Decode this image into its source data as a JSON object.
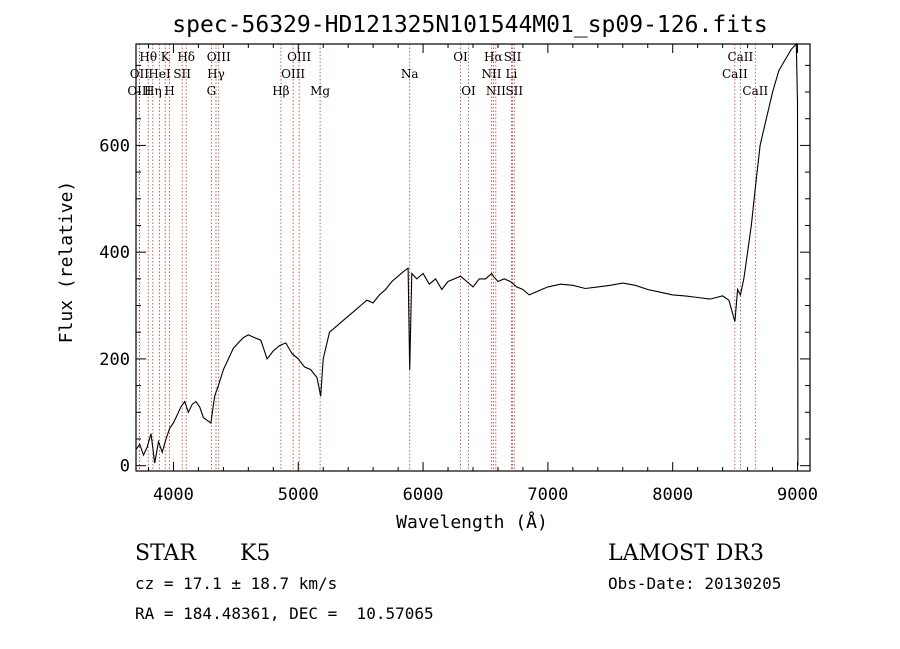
{
  "chart_data": {
    "type": "line",
    "title": "spec-56329-HD121325N101544M01_sp09-126.fits",
    "xlabel": "Wavelength (Å)",
    "ylabel": "Flux (relative)",
    "xlim": [
      3700,
      9100
    ],
    "ylim": [
      -10,
      790
    ],
    "xticks": [
      4000,
      5000,
      6000,
      7000,
      8000,
      9000
    ],
    "yticks": [
      0,
      200,
      400,
      600
    ],
    "xtick_labels": [
      "4000",
      "5000",
      "6000",
      "7000",
      "8000",
      "9000"
    ],
    "ytick_labels": [
      "0",
      "200",
      "400",
      "600"
    ],
    "grid": false,
    "series": [
      {
        "color": "#000000",
        "x": [
          3700,
          3730,
          3760,
          3790,
          3820,
          3850,
          3880,
          3910,
          3940,
          3970,
          4000,
          4030,
          4060,
          4090,
          4120,
          4150,
          4180,
          4210,
          4240,
          4270,
          4300,
          4330,
          4360,
          4400,
          4440,
          4480,
          4520,
          4560,
          4600,
          4650,
          4700,
          4750,
          4800,
          4850,
          4900,
          4950,
          5000,
          5050,
          5100,
          5150,
          5180,
          5200,
          5250,
          5300,
          5350,
          5400,
          5450,
          5500,
          5550,
          5600,
          5650,
          5700,
          5750,
          5800,
          5850,
          5880,
          5893,
          5910,
          5950,
          6000,
          6050,
          6100,
          6150,
          6200,
          6250,
          6300,
          6350,
          6400,
          6450,
          6500,
          6550,
          6563,
          6600,
          6650,
          6700,
          6750,
          6800,
          6850,
          6900,
          6950,
          7000,
          7100,
          7200,
          7300,
          7400,
          7500,
          7600,
          7700,
          7800,
          7900,
          8000,
          8100,
          8200,
          8300,
          8400,
          8450,
          8498,
          8520,
          8542,
          8570,
          8600,
          8630,
          8662,
          8700,
          8750,
          8800,
          8850,
          8900,
          8950,
          8990,
          9000,
          9003
        ],
        "y": [
          30,
          40,
          20,
          35,
          60,
          5,
          45,
          25,
          50,
          70,
          80,
          95,
          110,
          120,
          100,
          115,
          120,
          110,
          90,
          85,
          80,
          130,
          150,
          180,
          200,
          220,
          230,
          240,
          245,
          240,
          235,
          200,
          215,
          225,
          230,
          210,
          200,
          185,
          180,
          165,
          130,
          200,
          250,
          260,
          270,
          280,
          290,
          300,
          310,
          305,
          320,
          330,
          345,
          355,
          365,
          370,
          180,
          360,
          350,
          360,
          340,
          350,
          330,
          345,
          350,
          355,
          345,
          335,
          350,
          350,
          360,
          355,
          345,
          350,
          345,
          335,
          330,
          320,
          325,
          330,
          335,
          340,
          338,
          332,
          335,
          338,
          342,
          338,
          330,
          325,
          320,
          318,
          315,
          312,
          318,
          310,
          270,
          330,
          320,
          350,
          400,
          450,
          520,
          600,
          650,
          700,
          740,
          760,
          780,
          790,
          680,
          0
        ]
      }
    ],
    "spectral_lines": [
      {
        "label": "Hθ",
        "x": 3798,
        "row": 0
      },
      {
        "label": "OII",
        "x": 3727,
        "row": 1
      },
      {
        "label": "OIII",
        "x": 3727,
        "row": 2
      },
      {
        "label": "HeI",
        "x": 3889,
        "row": 1
      },
      {
        "label": "Hη",
        "x": 3835,
        "row": 2
      },
      {
        "label": "K",
        "x": 3934,
        "row": 0
      },
      {
        "label": "SII",
        "x": 4070,
        "row": 1
      },
      {
        "label": "H",
        "x": 3969,
        "row": 2
      },
      {
        "label": "Hδ",
        "x": 4102,
        "row": 0
      },
      {
        "label": "OIII",
        "x": 4363,
        "row": 0
      },
      {
        "label": "Hγ",
        "x": 4341,
        "row": 1
      },
      {
        "label": "G",
        "x": 4304,
        "row": 2
      },
      {
        "label": "OIII",
        "x": 5007,
        "row": 0
      },
      {
        "label": "OIII",
        "x": 4959,
        "row": 1
      },
      {
        "label": "Hβ",
        "x": 4861,
        "row": 2
      },
      {
        "label": "Mg",
        "x": 5175,
        "row": 2
      },
      {
        "label": "Na",
        "x": 5893,
        "row": 1
      },
      {
        "label": "OI",
        "x": 6300,
        "row": 0
      },
      {
        "label": "OI",
        "x": 6364,
        "row": 2
      },
      {
        "label": "Hα",
        "x": 6563,
        "row": 0
      },
      {
        "label": "SII",
        "x": 6717,
        "row": 0
      },
      {
        "label": "NII",
        "x": 6548,
        "row": 1
      },
      {
        "label": "Li",
        "x": 6708,
        "row": 1
      },
      {
        "label": "NII",
        "x": 6583,
        "row": 2
      },
      {
        "label": "SII",
        "x": 6731,
        "row": 2
      },
      {
        "label": "CaII",
        "x": 8542,
        "row": 0
      },
      {
        "label": "CaII",
        "x": 8498,
        "row": 1
      },
      {
        "label": "CaII",
        "x": 8662,
        "row": 2
      }
    ]
  },
  "info": {
    "object_class": "STAR",
    "subclass": "K5",
    "survey": "LAMOST DR3",
    "redshift": "cz = 17.1 ± 18.7 km/s",
    "obs_date": "Obs-Date: 20130205",
    "coords": "RA = 184.48361, DEC =  10.57065"
  },
  "colors": {
    "spectrum": "#000000",
    "marker_lines": "#c0392b",
    "axes": "#000000",
    "background": "#ffffff"
  }
}
